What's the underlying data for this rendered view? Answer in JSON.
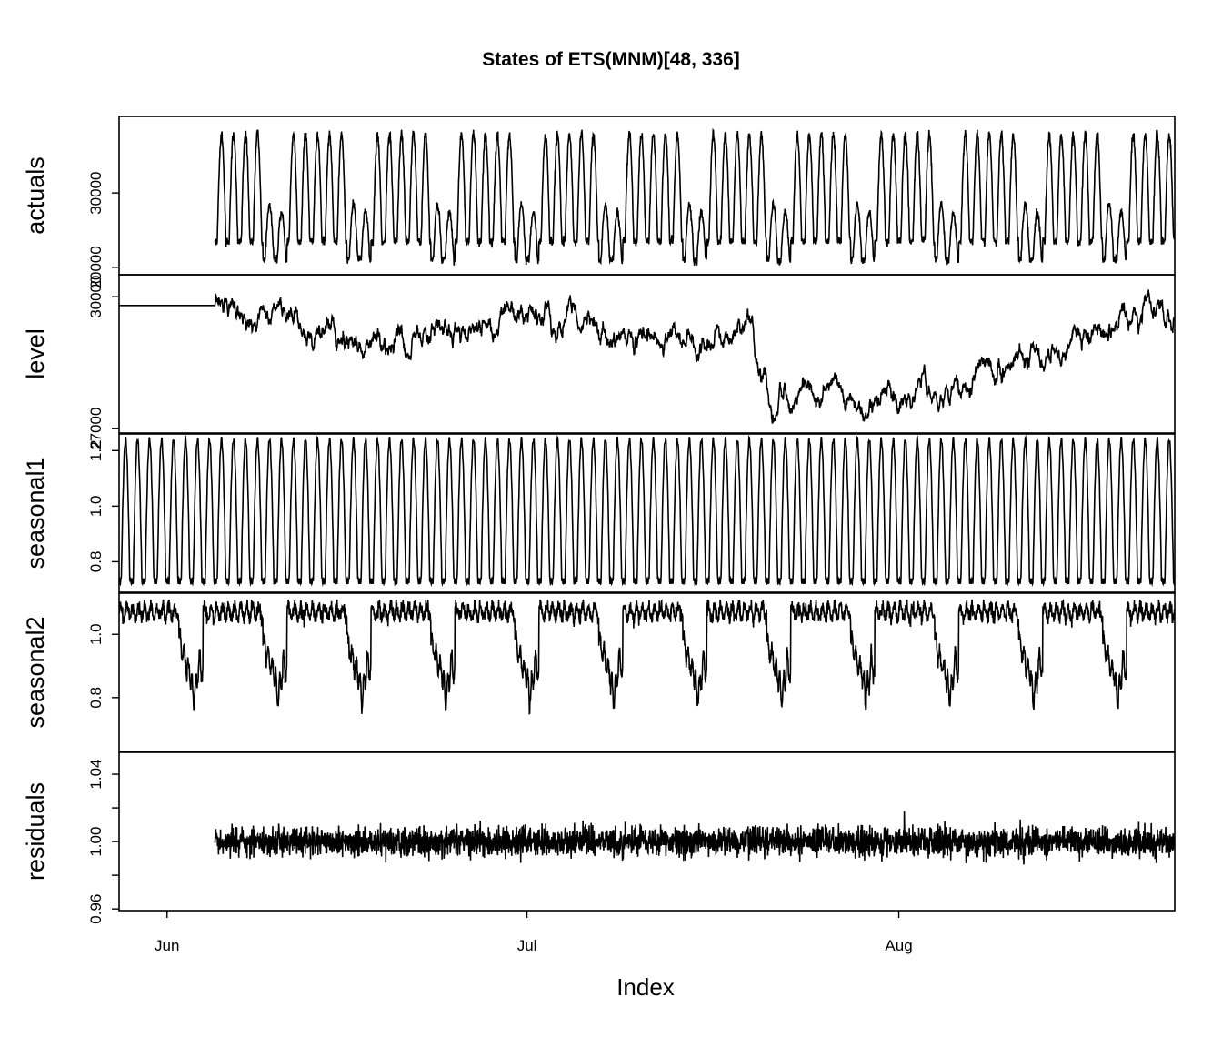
{
  "chart_data": {
    "type": "line",
    "title": "States of ETS(MNM)[48, 336]",
    "xlabel": "Index",
    "x_tick_labels": [
      "Jun",
      "Jul",
      "Aug"
    ],
    "x_range": [
      "2023-05-28",
      "2023-08-24"
    ],
    "panels": [
      {
        "ylabel": "actuals",
        "y_ticks": [
          20000,
          30000
        ],
        "y_tick_labels": [
          "20000",
          "30000"
        ],
        "ylim": [
          19000,
          40300
        ],
        "starts": "2023-06-05",
        "series_summary": {
          "min": 19300,
          "max": 38500,
          "typical_daily_peak": 37500,
          "typical_daily_trough": 23500,
          "weekend_peak": 28500
        }
      },
      {
        "ylabel": "level",
        "y_ticks": [
          27000,
          30000
        ],
        "y_tick_labels": [
          "27000",
          "30000"
        ],
        "ylim": [
          26900,
          30500
        ],
        "starts": "2023-05-28",
        "initial_value": 29800,
        "series_summary": {
          "min": 27050,
          "max": 30350
        }
      },
      {
        "ylabel": "seasonal1",
        "y_ticks": [
          0.8,
          1.0,
          1.2
        ],
        "y_tick_labels": [
          "0.8",
          "1.0",
          "1.2"
        ],
        "ylim": [
          0.69,
          1.26
        ],
        "starts": "2023-05-28",
        "period": 48,
        "series_summary": {
          "min": 0.73,
          "max": 1.24
        }
      },
      {
        "ylabel": "seasonal2",
        "y_ticks": [
          0.8,
          1.0
        ],
        "y_tick_labels": [
          "0.8",
          "1.0"
        ],
        "ylim": [
          0.63,
          1.13
        ],
        "starts": "2023-05-28",
        "period": 336,
        "series_summary": {
          "min": 0.66,
          "max": 1.11
        }
      },
      {
        "ylabel": "residuals",
        "y_ticks": [
          0.96,
          1.0,
          1.04
        ],
        "y_tick_labels": [
          "0.96",
          "1.00",
          "1.04"
        ],
        "minor_y_ticks": [
          0.98,
          1.02
        ],
        "ylim": [
          0.959,
          1.053
        ],
        "starts": "2023-06-05",
        "series_summary": {
          "min": 0.961,
          "max": 1.05
        }
      }
    ],
    "grid": false,
    "legend": "none"
  }
}
